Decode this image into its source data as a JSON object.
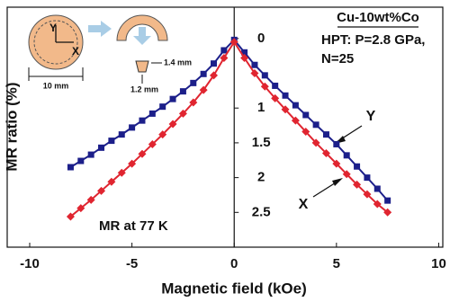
{
  "chart_data": {
    "type": "line",
    "xlabel": "Magnetic field (kOe)",
    "ylabel": "MR ratio (%)",
    "xlim": [
      -11.1,
      10.2
    ],
    "xticks": [
      -10,
      -5,
      0,
      5,
      10
    ],
    "ylim": [
      3,
      -0.45
    ],
    "yticks": [
      0,
      1,
      1.5,
      2,
      2.5
    ],
    "x": [
      -8,
      -7.5,
      -7,
      -6.5,
      -6,
      -5.5,
      -5,
      -4.5,
      -4,
      -3.5,
      -3,
      -2.5,
      -2,
      -1.5,
      -1,
      -0.5,
      0,
      0.5,
      1,
      1.5,
      2,
      2.5,
      3,
      3.5,
      4,
      4.5,
      5,
      5.5,
      6,
      6.5,
      7,
      7.5
    ],
    "series": [
      {
        "name": "Y",
        "color": "#1c1f8a",
        "marker": "square",
        "values": [
          1.85,
          1.76,
          1.67,
          1.57,
          1.47,
          1.38,
          1.28,
          1.18,
          1.08,
          0.98,
          0.87,
          0.76,
          0.64,
          0.51,
          0.36,
          0.17,
          0.02,
          0.2,
          0.38,
          0.53,
          0.68,
          0.82,
          0.96,
          1.1,
          1.24,
          1.38,
          1.52,
          1.68,
          1.84,
          2.0,
          2.16,
          2.33
        ]
      },
      {
        "name": "X",
        "color": "#e02530",
        "marker": "diamond",
        "values": [
          2.56,
          2.44,
          2.32,
          2.19,
          2.06,
          1.93,
          1.8,
          1.66,
          1.52,
          1.38,
          1.23,
          1.08,
          0.92,
          0.74,
          0.53,
          0.28,
          0.05,
          0.28,
          0.5,
          0.69,
          0.86,
          1.02,
          1.18,
          1.34,
          1.5,
          1.65,
          1.8,
          1.95,
          2.1,
          2.24,
          2.38,
          2.5
        ]
      }
    ],
    "annotations": {
      "material": "Cu-10wt%Co",
      "process": "HPT: P=2.8 GPa,",
      "turns": "N=25",
      "temperature": "MR at 77 K"
    },
    "inset": {
      "axis_y": "Y",
      "axis_x": "X",
      "diameter": "10 mm",
      "width": "1.4 mm",
      "height": "1.2 mm"
    }
  }
}
